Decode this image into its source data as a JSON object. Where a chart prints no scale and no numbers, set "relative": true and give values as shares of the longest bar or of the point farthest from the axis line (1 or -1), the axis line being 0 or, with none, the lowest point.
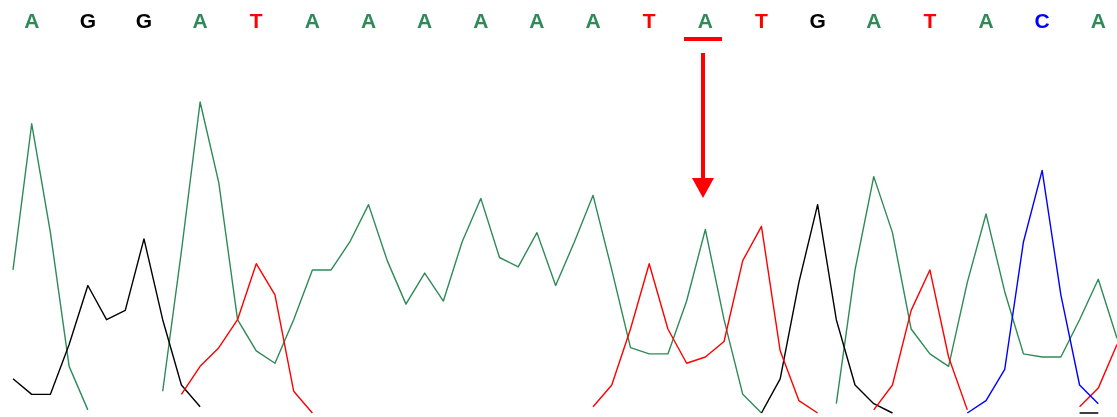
{
  "chart_data": {
    "type": "line",
    "relative": true,
    "categories": [
      null,
      "A",
      null,
      null,
      "G",
      null,
      null,
      "G",
      null,
      null,
      "A",
      null,
      null,
      "T",
      null,
      null,
      "A",
      null,
      null,
      "A",
      null,
      null,
      "A",
      null,
      null,
      "A",
      null,
      null,
      "A",
      null,
      null,
      "A",
      null,
      null,
      "T",
      null,
      null,
      "A",
      null,
      null,
      "T",
      null,
      null,
      "G",
      null,
      null,
      "A",
      null,
      null,
      "T",
      null,
      null,
      "A",
      null,
      null,
      "C",
      null,
      null,
      "A",
      null
    ],
    "series": [
      {
        "color": "#2e8b57",
        "values": [
          0.46,
          0.93,
          0.58,
          0.15,
          0.01,
          null,
          null,
          null,
          0.07,
          0.52,
          1,
          0.74,
          0.3,
          0.2,
          0.16,
          0.3,
          0.46,
          0.46,
          0.55,
          0.67,
          0.49,
          0.35,
          0.45,
          0.36,
          0.55,
          0.69,
          0.5,
          0.47,
          0.58,
          0.41,
          0.55,
          0.7,
          0.46,
          0.21,
          0.19,
          0.19,
          0.36,
          0.59,
          0.3,
          0.06,
          0,
          null,
          null,
          null,
          0.03,
          0.46,
          0.76,
          0.58,
          0.27,
          0.19,
          0.15,
          0.42,
          0.64,
          0.39,
          0.19,
          0.18,
          0.18,
          0.3,
          0.43,
          0.24
        ]
      },
      {
        "color": "#000000",
        "values": [
          0.11,
          0.06,
          0.06,
          0.22,
          0.41,
          0.3,
          0.33,
          0.56,
          0.3,
          0.09,
          0.02,
          null,
          null,
          null,
          null,
          null,
          null,
          null,
          null,
          null,
          null,
          null,
          null,
          null,
          null,
          null,
          null,
          null,
          null,
          null,
          null,
          null,
          null,
          null,
          null,
          null,
          null,
          null,
          null,
          null,
          0,
          0.11,
          0.42,
          0.67,
          0.3,
          0.09,
          0.03,
          0,
          null,
          null,
          null,
          null,
          null,
          null,
          null,
          null,
          null,
          0,
          0,
          null
        ]
      },
      {
        "color": "#ff0000",
        "values": [
          null,
          null,
          null,
          null,
          null,
          null,
          null,
          null,
          null,
          0.06,
          0.15,
          0.21,
          0.3,
          0.48,
          0.38,
          0.07,
          0,
          null,
          null,
          null,
          null,
          null,
          null,
          null,
          null,
          null,
          null,
          null,
          null,
          null,
          null,
          0.02,
          0.09,
          0.27,
          0.48,
          0.27,
          0.16,
          0.18,
          0.23,
          0.49,
          0.6,
          0.2,
          0.04,
          0,
          null,
          null,
          0.01,
          0.09,
          0.33,
          0.46,
          0.18,
          0.01,
          null,
          null,
          null,
          null,
          null,
          0.02,
          0.08,
          0.22
        ]
      },
      {
        "color": "#0000ff",
        "values": [
          null,
          null,
          null,
          null,
          null,
          null,
          null,
          null,
          null,
          null,
          null,
          null,
          null,
          null,
          null,
          null,
          null,
          null,
          null,
          null,
          null,
          null,
          null,
          null,
          null,
          null,
          null,
          null,
          null,
          null,
          null,
          null,
          null,
          null,
          null,
          null,
          null,
          null,
          null,
          null,
          null,
          null,
          null,
          null,
          null,
          null,
          null,
          null,
          null,
          null,
          null,
          0,
          0.04,
          0.14,
          0.55,
          0.78,
          0.38,
          0.09,
          0.03,
          null
        ]
      }
    ]
  }
}
